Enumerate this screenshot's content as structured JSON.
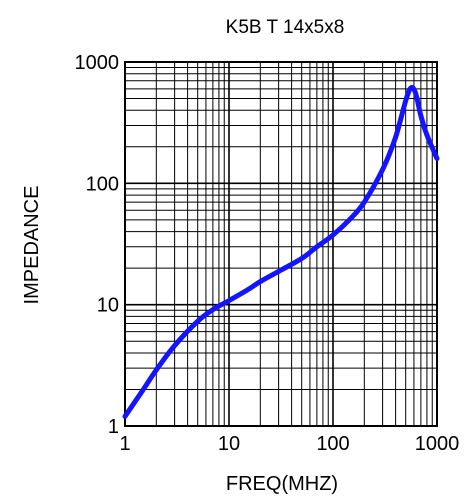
{
  "chart_data": {
    "type": "line",
    "title": "K5B T 14x5x8",
    "xlabel": "FREQ(MHZ)",
    "ylabel": "IMPEDANCE",
    "x_scale": "log",
    "y_scale": "log",
    "xlim": [
      1,
      1000
    ],
    "ylim": [
      1,
      1000
    ],
    "x_ticks": [
      "1",
      "10",
      "100",
      "1000"
    ],
    "y_ticks": [
      "1",
      "10",
      "100",
      "1000"
    ],
    "grid": true,
    "legend": "none",
    "line_color": "#1414ff",
    "series": [
      {
        "x": [
          1,
          1.5,
          2,
          3,
          5,
          7,
          10,
          15,
          20,
          30,
          50,
          70,
          100,
          150,
          200,
          300,
          400,
          500,
          560,
          620,
          700,
          800,
          1000
        ],
        "y": [
          1.2,
          2.0,
          2.9,
          4.6,
          7.3,
          9.1,
          10.8,
          13.2,
          15.5,
          18.8,
          24.0,
          30.0,
          37.5,
          52.0,
          70.0,
          130.0,
          240.0,
          480.0,
          610.0,
          560.0,
          360.0,
          250.0,
          160.0
        ]
      }
    ]
  }
}
